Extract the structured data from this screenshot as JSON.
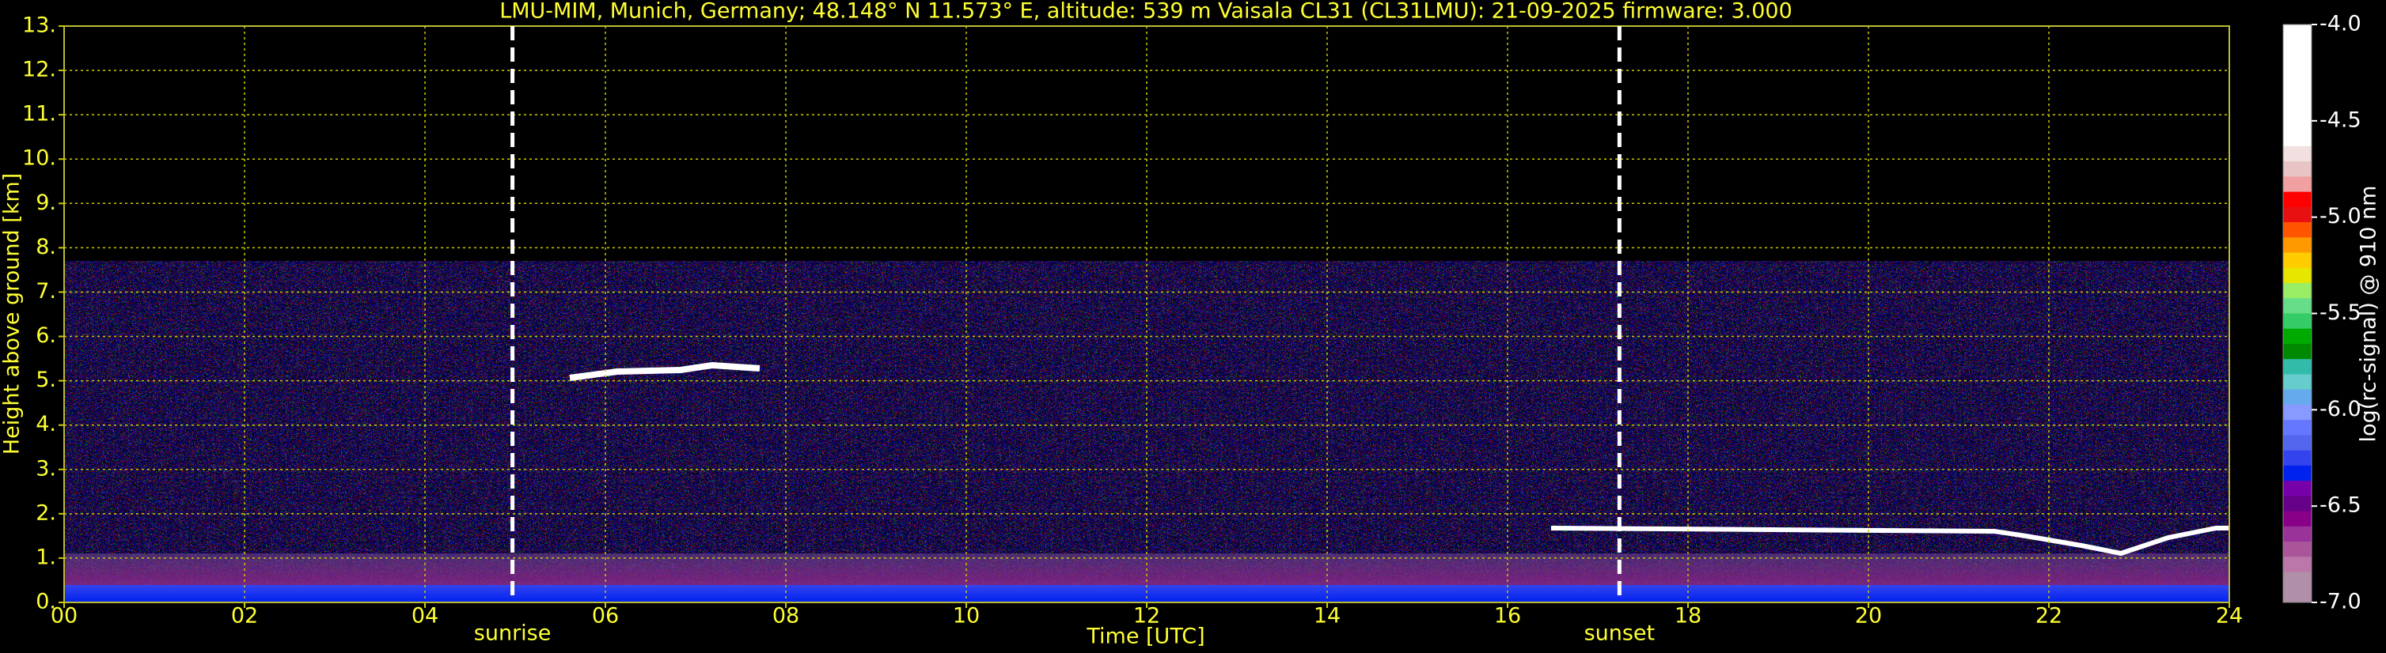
{
  "chart_data": {
    "type": "heatmap",
    "title": "LMU-MIM, Munich, Germany; 48.148° N 11.573° E, altitude: 539 m    Vaisala CL31 (CL31LMU): 21-09-2025    firmware: 3.000",
    "xlabel": "Time [UTC]",
    "ylabel": "Height above ground [km]",
    "xlim": [
      0,
      24
    ],
    "xticks": [
      {
        "value": 0,
        "label": "00"
      },
      {
        "value": 2,
        "label": "02"
      },
      {
        "value": 4,
        "label": "04"
      },
      {
        "value": 6,
        "label": "06"
      },
      {
        "value": 8,
        "label": "08"
      },
      {
        "value": 10,
        "label": "10"
      },
      {
        "value": 12,
        "label": "12"
      },
      {
        "value": 14,
        "label": "14"
      },
      {
        "value": 16,
        "label": "16"
      },
      {
        "value": 18,
        "label": "18"
      },
      {
        "value": 20,
        "label": "20"
      },
      {
        "value": 22,
        "label": "22"
      },
      {
        "value": 24,
        "label": "24"
      }
    ],
    "ylim": [
      0,
      13
    ],
    "yticks": [
      {
        "value": 0,
        "label": "0."
      },
      {
        "value": 1,
        "label": "1."
      },
      {
        "value": 2,
        "label": "2."
      },
      {
        "value": 3,
        "label": "3."
      },
      {
        "value": 4,
        "label": "4."
      },
      {
        "value": 5,
        "label": "5."
      },
      {
        "value": 6,
        "label": "6."
      },
      {
        "value": 7,
        "label": "7."
      },
      {
        "value": 8,
        "label": "8."
      },
      {
        "value": 9,
        "label": "9."
      },
      {
        "value": 10,
        "label": "10."
      },
      {
        "value": 11,
        "label": "11."
      },
      {
        "value": 12,
        "label": "12."
      },
      {
        "value": 13,
        "label": "13."
      }
    ],
    "grid": true,
    "annotations": [
      {
        "text": "sunrise",
        "x": 4.97
      },
      {
        "text": "sunset",
        "x": 17.24
      }
    ],
    "colorbar": {
      "label": "log(rc-signal) @ 910 nm",
      "clim": [
        -7,
        -4
      ],
      "ticks": [
        {
          "value": -4,
          "label": "-4.0"
        },
        {
          "value": -4.5,
          "label": "-4.5"
        },
        {
          "value": -5,
          "label": "-5.0"
        },
        {
          "value": -5.5,
          "label": "-5.5"
        },
        {
          "value": -6,
          "label": "-6.0"
        },
        {
          "value": -6.5,
          "label": "-6.5"
        },
        {
          "value": -7,
          "label": "-7.0"
        }
      ],
      "colors": [
        "#ffffff",
        "#ffffff",
        "#ffffff",
        "#ffffff",
        "#ffffff",
        "#ffffff",
        "#ffffff",
        "#ffffff",
        "#f2e0e0",
        "#e8c4c4",
        "#f0a0a0",
        "#ff0000",
        "#e81010",
        "#ff5500",
        "#ff9900",
        "#ffcc00",
        "#e6e600",
        "#99ee66",
        "#66dd88",
        "#33cc66",
        "#00aa00",
        "#008800",
        "#33bbaa",
        "#66cccc",
        "#66aaee",
        "#8899ff",
        "#6677ff",
        "#5566ee",
        "#3344ee",
        "#0022ee",
        "#7700aa",
        "#660088",
        "#880088",
        "#993399",
        "#aa5599",
        "#bb77aa",
        "#b090a8",
        "#b090a8"
      ]
    }
  }
}
